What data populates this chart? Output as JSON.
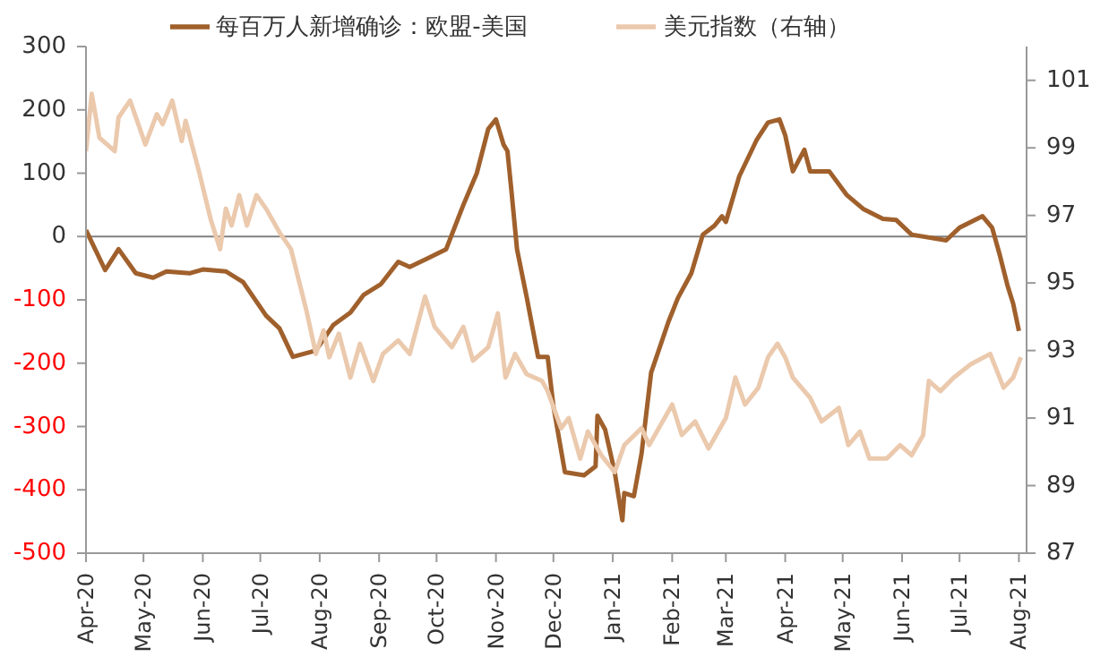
{
  "chart_data": {
    "type": "line",
    "legend": "top",
    "xlim": [
      "2020-04-01",
      "2021-08-05"
    ],
    "xticks": [
      {
        "value": "2020-04-01",
        "label": "Apr-20"
      },
      {
        "value": "2020-05-01",
        "label": "May-20"
      },
      {
        "value": "2020-06-01",
        "label": "Jun-20"
      },
      {
        "value": "2020-07-01",
        "label": "Jul-20"
      },
      {
        "value": "2020-08-01",
        "label": "Aug-20"
      },
      {
        "value": "2020-09-01",
        "label": "Sep-20"
      },
      {
        "value": "2020-10-01",
        "label": "Oct-20"
      },
      {
        "value": "2020-11-01",
        "label": "Nov-20"
      },
      {
        "value": "2020-12-01",
        "label": "Dec-20"
      },
      {
        "value": "2021-01-01",
        "label": "Jan-21"
      },
      {
        "value": "2021-02-01",
        "label": "Feb-21"
      },
      {
        "value": "2021-03-01",
        "label": "Mar-21"
      },
      {
        "value": "2021-04-01",
        "label": "Apr-21"
      },
      {
        "value": "2021-05-01",
        "label": "May-21"
      },
      {
        "value": "2021-06-01",
        "label": "Jun-21"
      },
      {
        "value": "2021-07-01",
        "label": "Jul-21"
      },
      {
        "value": "2021-08-01",
        "label": "Aug-21"
      }
    ],
    "ylim": [
      -500,
      300
    ],
    "yticks": [
      -500,
      -400,
      -300,
      -200,
      -100,
      0,
      100,
      200,
      300
    ],
    "y2lim": [
      87,
      102
    ],
    "y2ticks": [
      87,
      89,
      91,
      93,
      95,
      97,
      99,
      101
    ],
    "ref_lines": [
      {
        "axis": "y",
        "value": 0,
        "color": "#808080"
      }
    ],
    "series": [
      {
        "name": "每百万人新增确诊：欧盟-美国",
        "color": "#a0602c",
        "axis": "y",
        "x": [
          "2020-04-01",
          "2020-04-11",
          "2020-04-18",
          "2020-04-27",
          "2020-05-06",
          "2020-05-13",
          "2020-05-25",
          "2020-06-01",
          "2020-06-13",
          "2020-06-22",
          "2020-07-04",
          "2020-07-11",
          "2020-07-18",
          "2020-07-30",
          "2020-08-08",
          "2020-08-17",
          "2020-08-24",
          "2020-09-02",
          "2020-09-11",
          "2020-09-17",
          "2020-09-26",
          "2020-10-06",
          "2020-10-15",
          "2020-10-22",
          "2020-10-28",
          "2020-11-01",
          "2020-11-05",
          "2020-11-07",
          "2020-11-09",
          "2020-11-12",
          "2020-11-17",
          "2020-11-23",
          "2020-11-28",
          "2020-12-01",
          "2020-12-07",
          "2020-12-17",
          "2020-12-23",
          "2020-12-24",
          "2020-12-28",
          "2021-01-02",
          "2021-01-06",
          "2021-01-07",
          "2021-01-12",
          "2021-01-16",
          "2021-01-21",
          "2021-01-30",
          "2021-02-04",
          "2021-02-11",
          "2021-02-17",
          "2021-02-23",
          "2021-02-27",
          "2021-03-01",
          "2021-03-08",
          "2021-03-17",
          "2021-03-23",
          "2021-03-29",
          "2021-04-01",
          "2021-04-05",
          "2021-04-11",
          "2021-04-14",
          "2021-04-24",
          "2021-05-03",
          "2021-05-12",
          "2021-05-22",
          "2021-05-29",
          "2021-06-06",
          "2021-06-24",
          "2021-07-01",
          "2021-07-13",
          "2021-07-18",
          "2021-07-22",
          "2021-07-26",
          "2021-07-29",
          "2021-08-01"
        ],
        "values": [
          10,
          -53,
          -20,
          -58,
          -65,
          -55,
          -58,
          -52,
          -55,
          -72,
          -125,
          -145,
          -190,
          -180,
          -140,
          -120,
          -92,
          -75,
          -40,
          -48,
          -35,
          -20,
          50,
          100,
          170,
          185,
          145,
          135,
          75,
          -20,
          -95,
          -190,
          -190,
          -268,
          -372,
          -377,
          -363,
          -283,
          -305,
          -372,
          -448,
          -405,
          -410,
          -343,
          -215,
          -135,
          -97,
          -58,
          3,
          17,
          32,
          23,
          95,
          152,
          180,
          185,
          160,
          103,
          137,
          103,
          103,
          66,
          43,
          28,
          26,
          3,
          -6,
          14,
          32,
          14,
          -29,
          -77,
          -106,
          -149
        ]
      },
      {
        "name": "美元指数（右轴）",
        "color": "#ebc9ad",
        "axis": "y2",
        "x": [
          "2020-04-01",
          "2020-04-04",
          "2020-04-08",
          "2020-04-16",
          "2020-04-18",
          "2020-04-24",
          "2020-05-02",
          "2020-05-08",
          "2020-05-11",
          "2020-05-16",
          "2020-05-21",
          "2020-05-23",
          "2020-05-30",
          "2020-06-05",
          "2020-06-10",
          "2020-06-13",
          "2020-06-16",
          "2020-06-20",
          "2020-06-24",
          "2020-06-29",
          "2020-07-04",
          "2020-07-11",
          "2020-07-17",
          "2020-07-25",
          "2020-07-30",
          "2020-08-03",
          "2020-08-06",
          "2020-08-11",
          "2020-08-17",
          "2020-08-22",
          "2020-08-29",
          "2020-09-03",
          "2020-09-11",
          "2020-09-17",
          "2020-09-25",
          "2020-09-30",
          "2020-10-09",
          "2020-10-15",
          "2020-10-20",
          "2020-10-28",
          "2020-11-02",
          "2020-11-06",
          "2020-11-11",
          "2020-11-17",
          "2020-11-25",
          "2020-11-28",
          "2020-12-05",
          "2020-12-09",
          "2020-12-15",
          "2020-12-19",
          "2020-12-26",
          "2021-01-02",
          "2021-01-07",
          "2021-01-16",
          "2021-01-20",
          "2021-02-01",
          "2021-02-06",
          "2021-02-13",
          "2021-02-20",
          "2021-03-01",
          "2021-03-06",
          "2021-03-11",
          "2021-03-18",
          "2021-03-23",
          "2021-03-28",
          "2021-04-01",
          "2021-04-05",
          "2021-04-14",
          "2021-04-20",
          "2021-04-29",
          "2021-05-04",
          "2021-05-10",
          "2021-05-15",
          "2021-05-24",
          "2021-05-31",
          "2021-06-06",
          "2021-06-12",
          "2021-06-15",
          "2021-06-21",
          "2021-06-28",
          "2021-07-07",
          "2021-07-17",
          "2021-07-24",
          "2021-07-29",
          "2021-08-02"
        ],
        "values": [
          98.9,
          100.6,
          99.3,
          98.9,
          99.9,
          100.4,
          99.1,
          100,
          99.7,
          100.4,
          99.2,
          99.8,
          98.3,
          96.9,
          96,
          97.2,
          96.7,
          97.6,
          96.7,
          97.6,
          97.2,
          96.5,
          96,
          94.2,
          92.9,
          93.6,
          92.8,
          93.5,
          92.2,
          93.2,
          92.1,
          92.9,
          93.3,
          92.9,
          94.6,
          93.7,
          93.1,
          93.7,
          92.7,
          93.1,
          94.1,
          92.2,
          92.9,
          92.3,
          92.1,
          91.8,
          90.7,
          91,
          89.8,
          90.6,
          89.9,
          89.4,
          90.2,
          90.7,
          90.2,
          91.4,
          90.5,
          90.9,
          90.1,
          91,
          92.2,
          91.4,
          91.9,
          92.8,
          93.2,
          92.8,
          92.2,
          91.6,
          90.9,
          91.3,
          90.2,
          90.6,
          89.8,
          89.8,
          90.2,
          89.9,
          90.5,
          92.1,
          91.8,
          92.2,
          92.6,
          92.9,
          91.9,
          92.2,
          92.8
        ]
      }
    ]
  }
}
